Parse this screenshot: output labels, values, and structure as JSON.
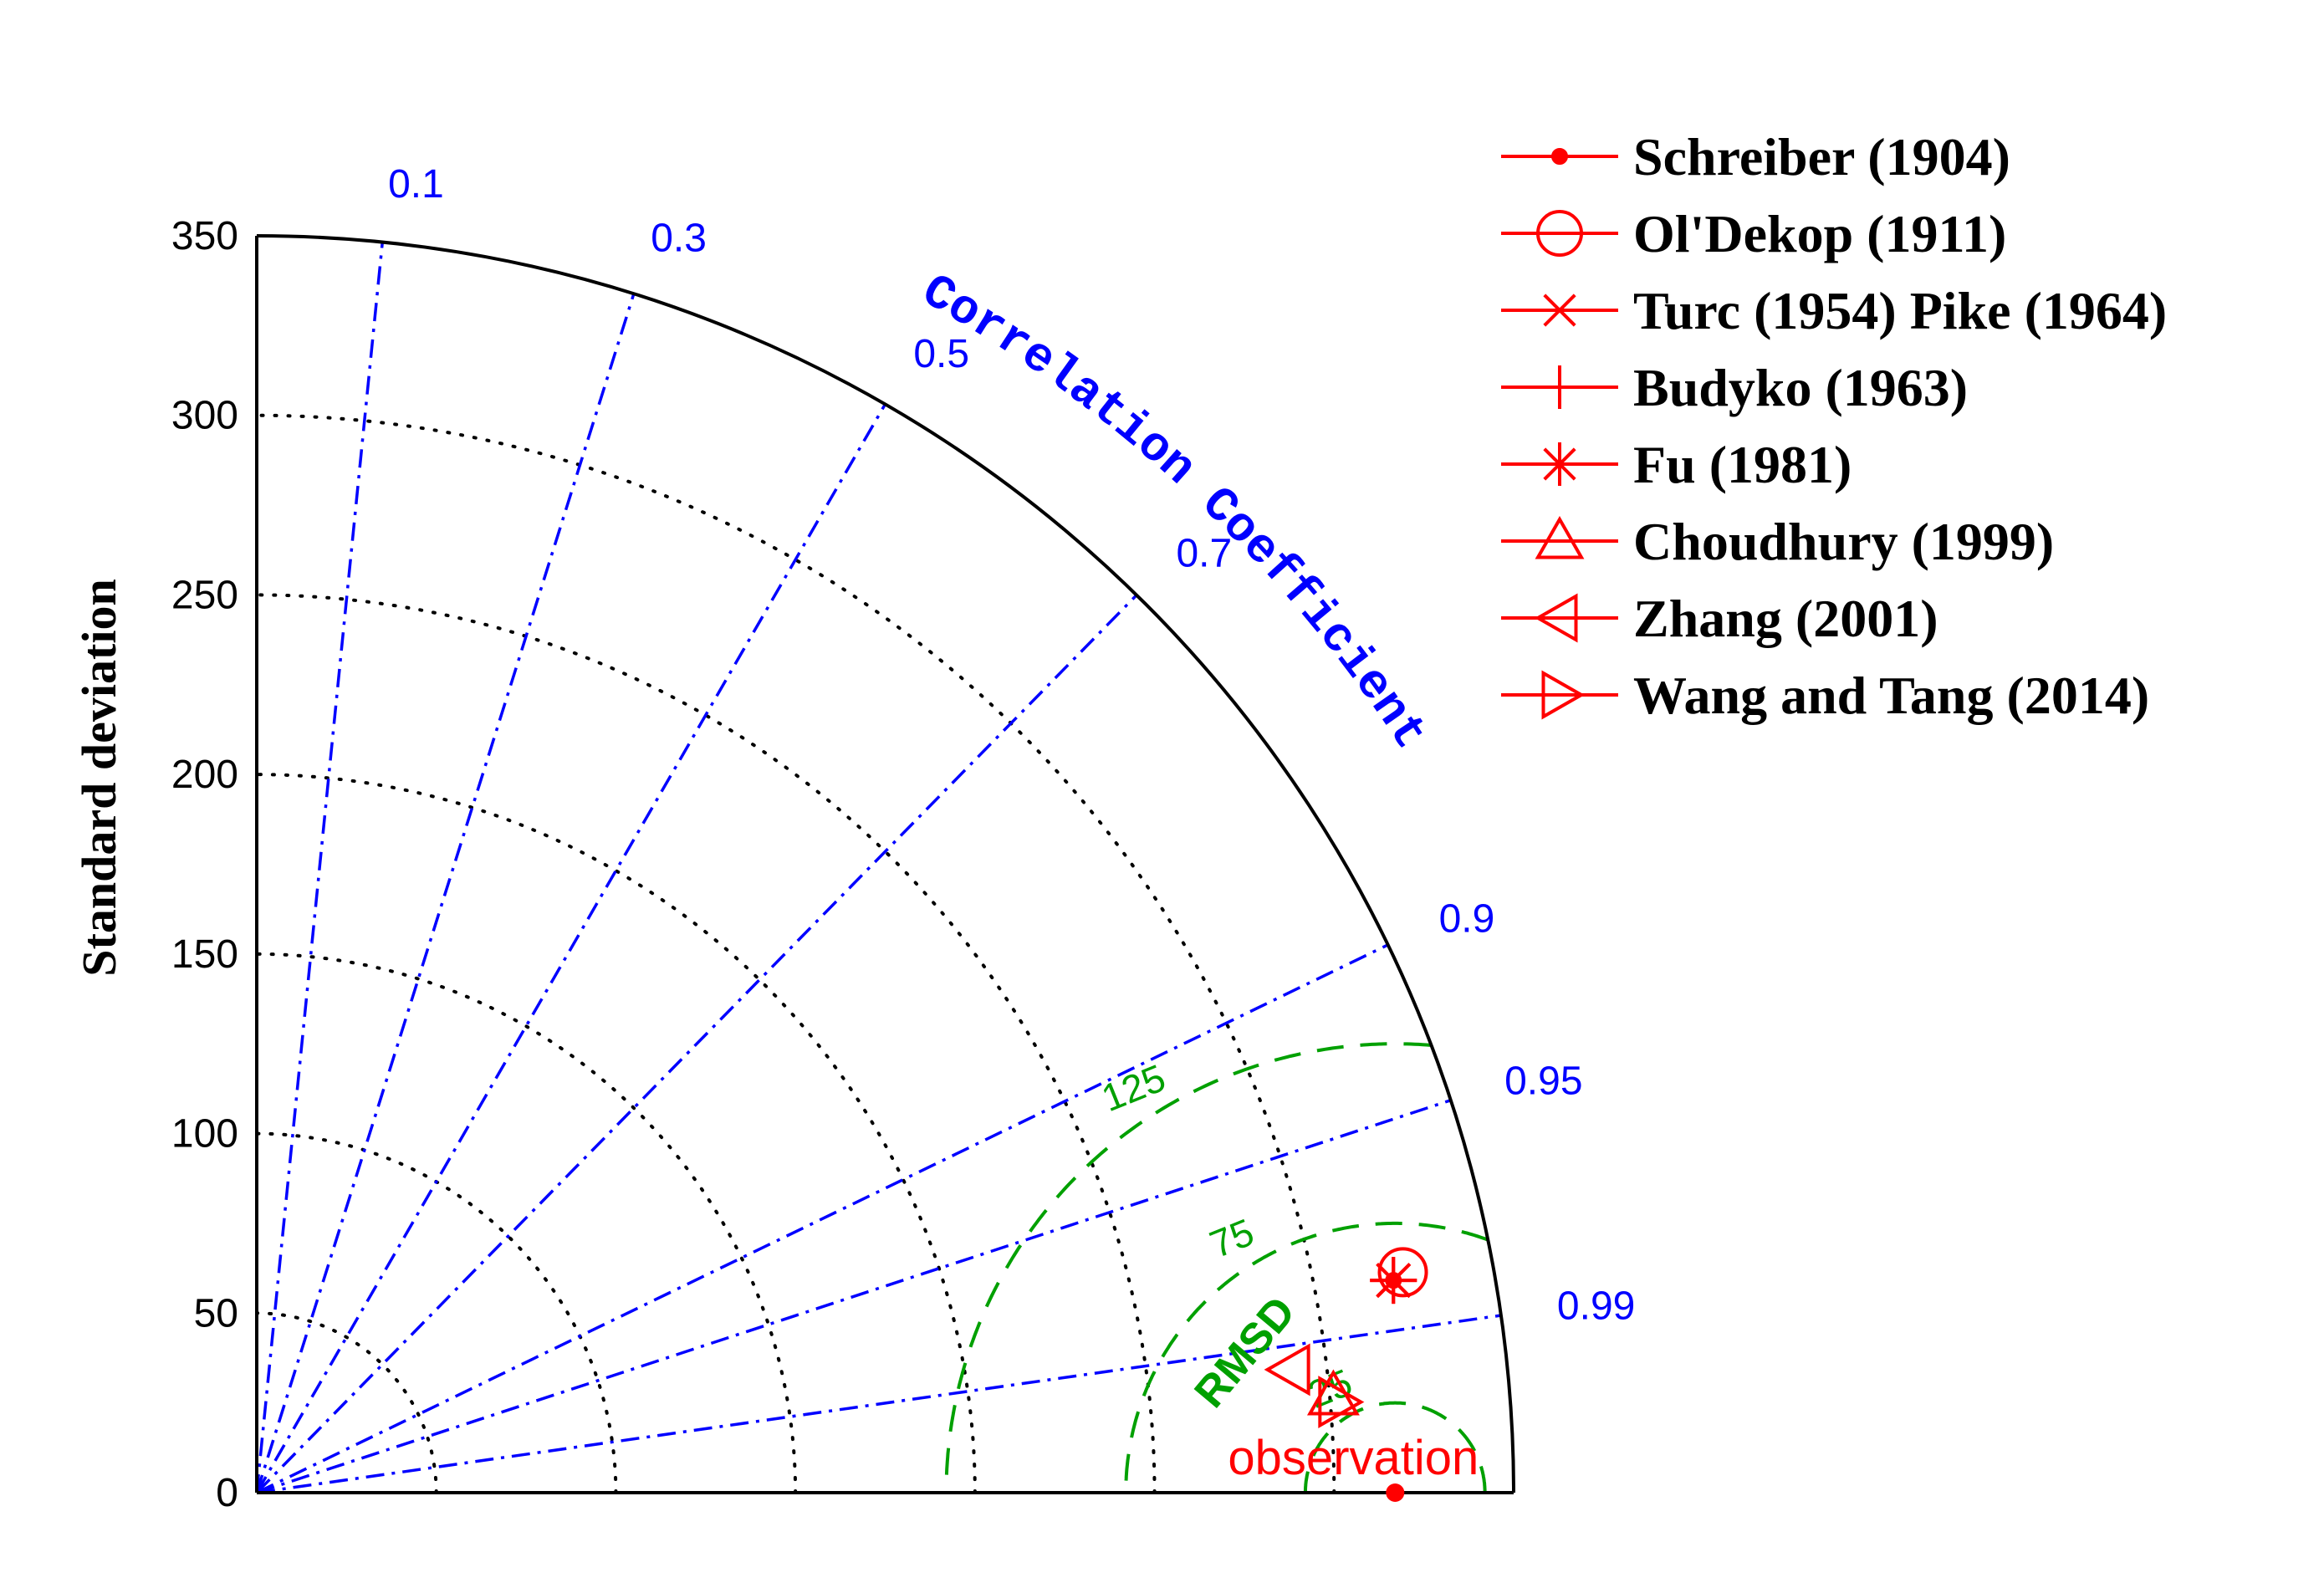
{
  "chart_data": {
    "type": "scatter",
    "subtype": "taylor-diagram",
    "ylabel": "Standard deviation",
    "angular_axis_label": "Correlation Coefficient",
    "rmsd_label": "RMSD",
    "std_ticks": [
      0,
      50,
      100,
      150,
      200,
      250,
      300,
      350
    ],
    "std_range": [
      0,
      350
    ],
    "correlation_ticks": [
      "0.1",
      "0.3",
      "0.5",
      "0.7",
      "0.9",
      "0.95",
      "0.99"
    ],
    "rmsd_ticks": [
      "25",
      "75",
      "125"
    ],
    "reference": {
      "label": "observation",
      "std": 317
    },
    "series": [
      {
        "name": "Schreiber (1904)",
        "marker": "point",
        "std": 322,
        "corr": 0.983
      },
      {
        "name": "Ol'Dekop (1911)",
        "marker": "circle",
        "std": 325,
        "corr": 0.982
      },
      {
        "name": "Turc (1954) Pike (1964)",
        "marker": "x",
        "std": 322,
        "corr": 0.983
      },
      {
        "name": "Budyko (1963)",
        "marker": "plus",
        "std": 322,
        "corr": 0.983
      },
      {
        "name": "Fu (1981)",
        "marker": "star",
        "std": 322,
        "corr": 0.983
      },
      {
        "name": "Choudhury (1999)",
        "marker": "triangle-up",
        "std": 301,
        "corr": 0.996
      },
      {
        "name": "Zhang (2001)",
        "marker": "triangle-left",
        "std": 290,
        "corr": 0.993
      },
      {
        "name": "Wang and Tang (2014)",
        "marker": "triangle-right",
        "std": 302,
        "corr": 0.9965
      }
    ],
    "colors": {
      "series": "#ff0000",
      "correlation": "#0000ff",
      "rmsd": "#00a000",
      "std_grid": "#000000"
    },
    "legend_position": "top-right",
    "grid": true
  }
}
